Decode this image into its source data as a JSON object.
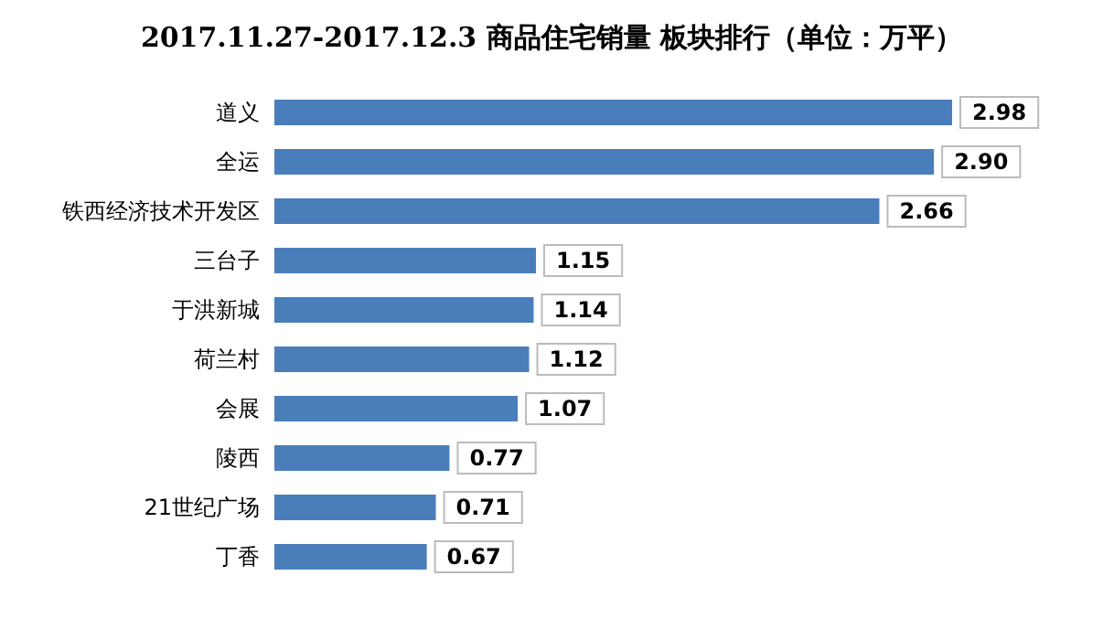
{
  "chart_data": {
    "type": "bar",
    "orientation": "horizontal",
    "title": "2017.11.27-2017.12.3 商品住宅销量 板块排行（单位：万平）",
    "categories": [
      "道义",
      "全运",
      "铁西经济技术开发区",
      "三台子",
      "于洪新城",
      "荷兰村",
      "会展",
      "陵西",
      "21世纪广场",
      "丁香"
    ],
    "values": [
      2.98,
      2.9,
      2.66,
      1.15,
      1.14,
      1.12,
      1.07,
      0.77,
      0.71,
      0.67
    ],
    "value_labels": [
      "2.98",
      "2.90",
      "2.66",
      "1.15",
      "1.14",
      "1.12",
      "1.07",
      "0.77",
      "0.71",
      "0.67"
    ],
    "color": "#4a7ebb",
    "grid": false
  }
}
